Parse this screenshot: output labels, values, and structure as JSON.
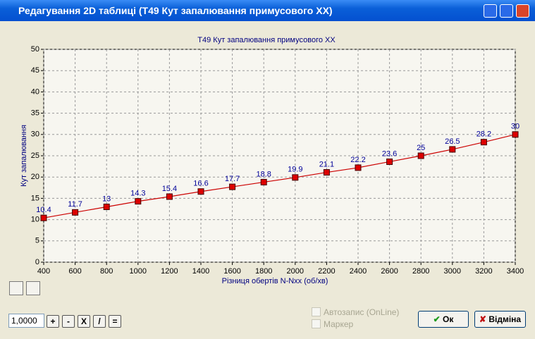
{
  "window": {
    "title": "Редагування 2D таблиці (T49 Кут запалювання примусового ХХ)"
  },
  "chart_data": {
    "type": "line",
    "title": "T49 Кут запалювання примусового ХХ",
    "x_label": "Різниця обертів N-Nxx (об/хв)",
    "y_label": "Кут запалювання",
    "x": [
      400,
      600,
      800,
      1000,
      1200,
      1400,
      1600,
      1800,
      2000,
      2200,
      2400,
      2600,
      2800,
      3000,
      3200,
      3400
    ],
    "values": [
      10.4,
      11.7,
      13,
      14.3,
      15.4,
      16.6,
      17.7,
      18.8,
      19.9,
      21.1,
      22.2,
      23.6,
      25,
      26.5,
      28.2,
      30
    ],
    "color": "#cc0000",
    "marker_color": "#dd0000",
    "label_color": "#000099",
    "xlim": [
      400,
      3400
    ],
    "xticks": [
      400,
      600,
      800,
      1000,
      1200,
      1400,
      1600,
      1800,
      2000,
      2200,
      2400,
      2600,
      2800,
      3000,
      3200,
      3400
    ],
    "ylim": [
      0,
      50
    ],
    "yticks": [
      0,
      5,
      10,
      15,
      20,
      25,
      30,
      35,
      40,
      45,
      50
    ],
    "grid": true
  },
  "controls": {
    "factor": "1,0000",
    "buttons": [
      "+",
      "-",
      "X",
      "/",
      "="
    ],
    "autosave": "Автозапис (OnLine)",
    "marker": "Маркер",
    "ok": "Ок",
    "cancel": "Відміна"
  }
}
